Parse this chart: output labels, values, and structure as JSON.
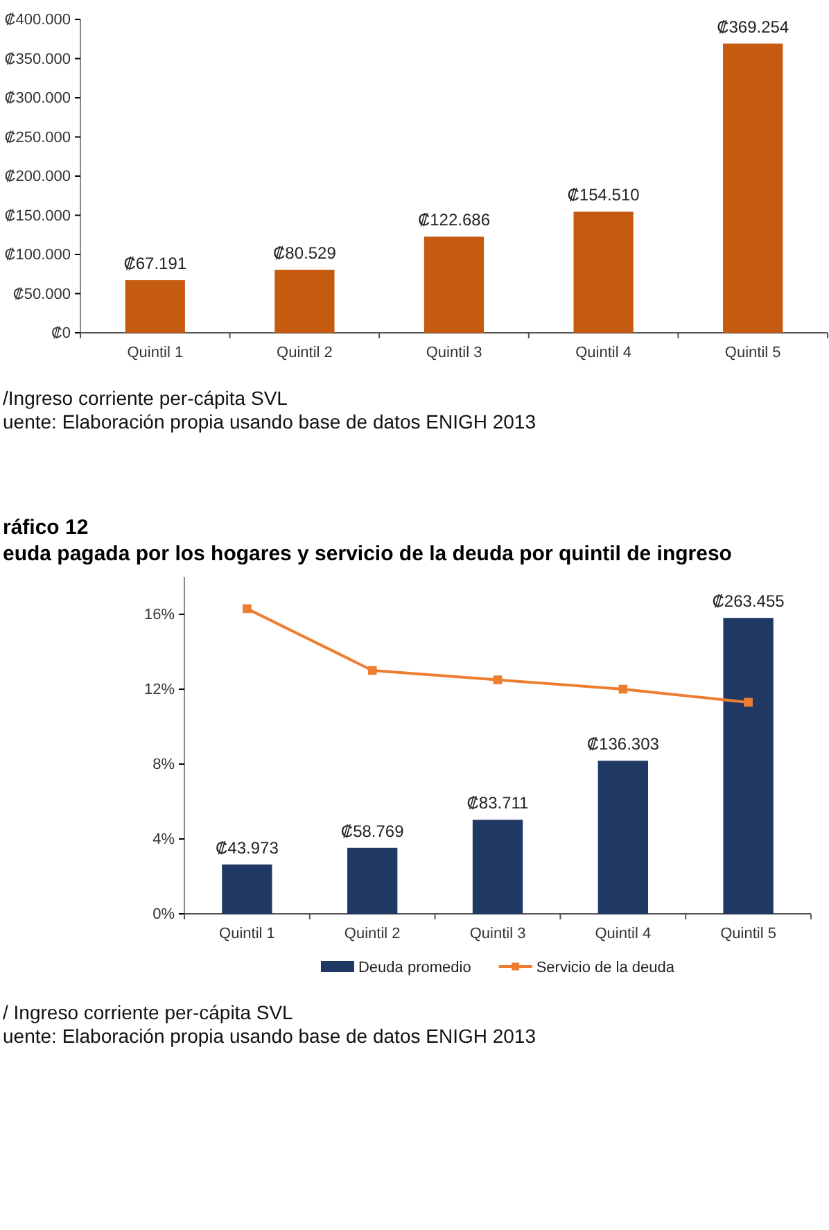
{
  "chart_data": [
    {
      "type": "bar",
      "categories": [
        "Quintil 1",
        "Quintil 2",
        "Quintil 3",
        "Quintil 4",
        "Quintil 5"
      ],
      "series": [
        {
          "color": "#c55a11",
          "values": [
            67191,
            80529,
            122686,
            154510,
            369254
          ],
          "value_labels": [
            "₡67.191",
            "₡80.529",
            "₡122.686",
            "₡154.510",
            "₡369.254"
          ]
        }
      ],
      "ylim": [
        0,
        400000
      ],
      "yticks": [
        {
          "value": 0,
          "label": "₡0"
        },
        {
          "value": 50000,
          "label": "₡50.000"
        },
        {
          "value": 100000,
          "label": "₡100.000"
        },
        {
          "value": 150000,
          "label": "₡150.000"
        },
        {
          "value": 200000,
          "label": "₡200.000"
        },
        {
          "value": 250000,
          "label": "₡250.000"
        },
        {
          "value": 300000,
          "label": "₡300.000"
        },
        {
          "value": 350000,
          "label": "₡350.000"
        },
        {
          "value": 400000,
          "label": "₡400.000"
        }
      ],
      "grid": false,
      "legend": false,
      "annotations": [
        "/Ingreso corriente per-cápita SVL",
        "uente: Elaboración propia usando base de datos ENIGH 2013"
      ]
    },
    {
      "type": "bar",
      "title": "ráfico 12",
      "subtitle": "euda pagada por los hogares y servicio de la deuda por quintil de ingreso",
      "categories": [
        "Quintil 1",
        "Quintil 2",
        "Quintil 3",
        "Quintil 4",
        "Quintil 5"
      ],
      "series": [
        {
          "name": "Deuda promedio",
          "axis": "y2",
          "color": "#1f3864",
          "values": [
            43973,
            58769,
            83711,
            136303,
            263455
          ],
          "value_labels": [
            "₡43.973",
            "₡58.769",
            "₡83.711",
            "₡136.303",
            "₡263.455"
          ]
        },
        {
          "name": "Servicio de la deuda",
          "type": "line",
          "color": "#ed7d31",
          "marker": "square",
          "values": [
            16.3,
            13.0,
            12.5,
            12.0,
            11.3
          ]
        }
      ],
      "ylim": [
        0,
        18
      ],
      "yticks": [
        {
          "value": 0,
          "label": "0%"
        },
        {
          "value": 4,
          "label": "4%"
        },
        {
          "value": 8,
          "label": "8%"
        },
        {
          "value": 12,
          "label": "12%"
        },
        {
          "value": 16,
          "label": "16%"
        }
      ],
      "y2lim": [
        0,
        300000
      ],
      "grid": false,
      "legend": "bottom",
      "annotations": [
        "/ Ingreso corriente per-cápita SVL",
        "uente: Elaboración propia usando base de datos ENIGH 2013"
      ]
    }
  ]
}
